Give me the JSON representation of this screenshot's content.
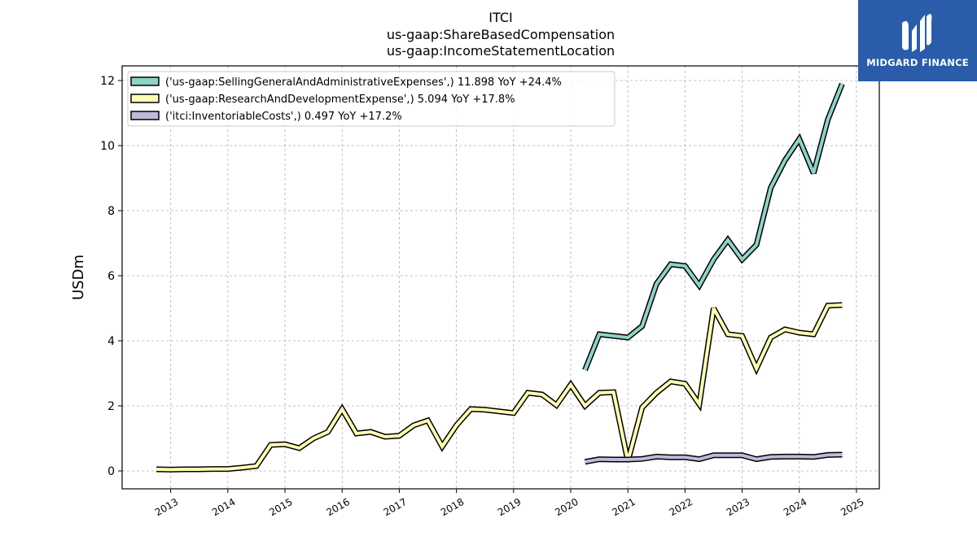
{
  "title_lines": [
    "ITCI",
    "us-gaap:ShareBasedCompensation",
    "us-gaap:IncomeStatementLocation"
  ],
  "logo": {
    "text": "MIDGARD FINANCE",
    "bg_color": "#2a5caa"
  },
  "chart_data": {
    "type": "line",
    "ylabel": "USDm",
    "xlabel": "",
    "ylim": [
      -0.55,
      12.45
    ],
    "yticks": [
      0,
      2,
      4,
      6,
      8,
      10,
      12
    ],
    "xlim": [
      2012.15,
      2025.4
    ],
    "xticks": [
      2013,
      2014,
      2015,
      2016,
      2017,
      2018,
      2019,
      2020,
      2021,
      2022,
      2023,
      2024,
      2025
    ],
    "grid": true,
    "legend_position": "top-left",
    "series": [
      {
        "name": "('us-gaap:SellingGeneralAndAdministrativeExpenses',) 11.898 YoY +24.4%",
        "color": "#8dd3c7",
        "x": [
          2020.25,
          2020.5,
          2020.75,
          2021.0,
          2021.25,
          2021.5,
          2021.75,
          2022.0,
          2022.25,
          2022.5,
          2022.75,
          2023.0,
          2023.25,
          2023.5,
          2023.75,
          2024.0,
          2024.25,
          2024.5,
          2024.75
        ],
        "y": [
          3.1,
          4.2,
          4.15,
          4.1,
          4.45,
          5.75,
          6.35,
          6.3,
          5.7,
          6.5,
          7.1,
          6.5,
          6.95,
          8.7,
          9.55,
          10.2,
          9.15,
          10.8,
          11.9
        ]
      },
      {
        "name": "('us-gaap:ResearchAndDevelopmentExpense',) 5.094 YoY +17.8%",
        "color": "#ffffb3",
        "x": [
          2012.75,
          2013.0,
          2013.25,
          2013.5,
          2013.75,
          2014.0,
          2014.25,
          2014.5,
          2014.75,
          2015.0,
          2015.25,
          2015.5,
          2015.75,
          2016.0,
          2016.25,
          2016.5,
          2016.75,
          2017.0,
          2017.25,
          2017.5,
          2017.75,
          2018.0,
          2018.25,
          2018.5,
          2018.75,
          2019.0,
          2019.25,
          2019.5,
          2019.75,
          2020.0,
          2020.25,
          2020.5,
          2020.75,
          2021.0,
          2021.25,
          2021.5,
          2021.75,
          2022.0,
          2022.25,
          2022.5,
          2022.75,
          2023.0,
          2023.25,
          2023.5,
          2023.75,
          2024.0,
          2024.25,
          2024.5,
          2024.75
        ],
        "y": [
          0.05,
          0.04,
          0.05,
          0.05,
          0.06,
          0.06,
          0.1,
          0.15,
          0.8,
          0.82,
          0.7,
          1.0,
          1.2,
          1.9,
          1.15,
          1.2,
          1.05,
          1.08,
          1.4,
          1.55,
          0.75,
          1.4,
          1.9,
          1.88,
          1.83,
          1.78,
          2.4,
          2.35,
          2.02,
          2.65,
          2.0,
          2.4,
          2.42,
          0.3,
          1.95,
          2.4,
          2.75,
          2.68,
          2.05,
          5.0,
          4.2,
          4.15,
          3.15,
          4.1,
          4.35,
          4.25,
          4.2,
          5.08,
          5.1
        ]
      },
      {
        "name": "('itci:InventoriableCosts',) 0.497 YoY +17.2%",
        "color": "#bebada",
        "x": [
          2020.25,
          2020.5,
          2020.75,
          2021.0,
          2021.25,
          2021.5,
          2021.75,
          2022.0,
          2022.25,
          2022.5,
          2022.75,
          2023.0,
          2023.25,
          2023.5,
          2023.75,
          2024.0,
          2024.25,
          2024.5,
          2024.75
        ],
        "y": [
          0.28,
          0.36,
          0.35,
          0.35,
          0.37,
          0.44,
          0.42,
          0.42,
          0.36,
          0.48,
          0.48,
          0.48,
          0.36,
          0.43,
          0.44,
          0.44,
          0.43,
          0.49,
          0.5
        ]
      }
    ]
  }
}
